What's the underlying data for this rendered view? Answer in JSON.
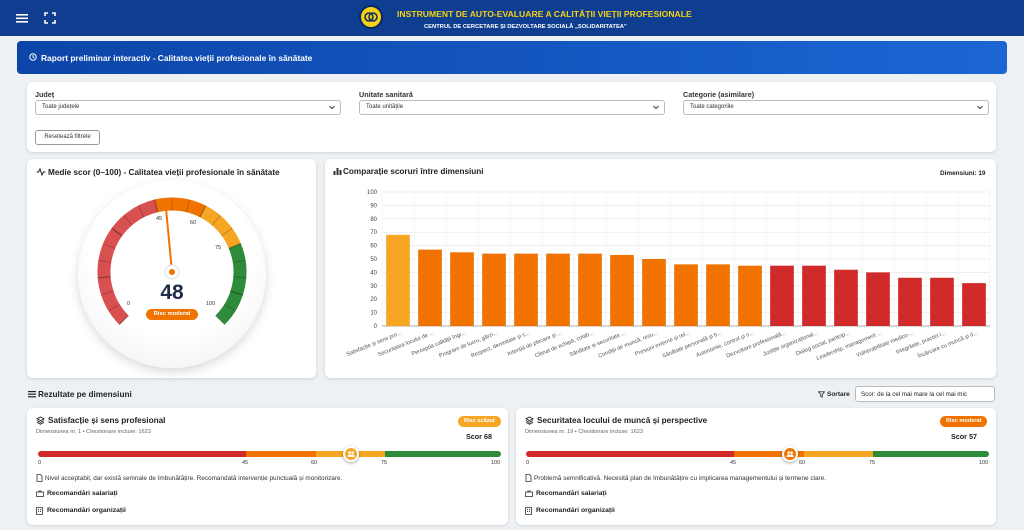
{
  "header": {
    "title": "INSTRUMENT DE AUTO-EVALUARE A CALITĂȚII VIEȚII PROFESIONALE",
    "subtitle": "CENTRUL DE CERCETARE ȘI DEZVOLTARE SOCIALĂ „SOLIDARITATEA\""
  },
  "hero": {
    "title": "Raport preliminar interactiv - Calitatea vieții profesionale în sănătate"
  },
  "filters": {
    "judet": {
      "label": "Județ",
      "value": "Toate județele"
    },
    "unitate": {
      "label": "Unitate sanitară",
      "value": "Toate unitățile"
    },
    "categorie": {
      "label": "Categorie (asimilare)",
      "value": "Toate categoriile"
    },
    "reset": "Resetează filtrele"
  },
  "gauge": {
    "title": "Medie scor (0–100) - Calitatea vieții profesionale în sănătate",
    "value": 48,
    "value_text": "48",
    "badge": "Risc moderat",
    "ticks": [
      "0",
      "45",
      "60",
      "75",
      "100"
    ]
  },
  "comparison": {
    "title": "Comparație scoruri între dimensiuni",
    "count_label": "Dimensiuni: 19"
  },
  "chart_data": {
    "type": "bar",
    "title": "Comparație scoruri între dimensiuni",
    "categories": [
      "Satisfacție și sens pro...",
      "Securitatea locului de ...",
      "Percepția calității îngr...",
      "Program de lucru, gărzi...",
      "Respect, demnitate și c...",
      "Intenția de plecare și ...",
      "Climat de echipă, colab...",
      "Sănătate și securitate ...",
      "Condiții de muncă, resu...",
      "Presiuni externe și rel...",
      "Sănătate personală și b...",
      "Autonomie, control și o...",
      "Dezvoltare profesională...",
      "Justiție organizațional...",
      "Dialog social, particip...",
      "Leadership, management ...",
      "Vulnerabilitate medico-...",
      "Integritate, practici i...",
      "Încărcare cu muncă și d..."
    ],
    "values": [
      68,
      57,
      55,
      54,
      54,
      54,
      54,
      53,
      50,
      46,
      46,
      45,
      45,
      45,
      42,
      40,
      36,
      36,
      32
    ],
    "colors": [
      "#f6a623",
      "#f07300",
      "#f07300",
      "#f07300",
      "#f07300",
      "#f07300",
      "#f07300",
      "#f07300",
      "#f07300",
      "#f07300",
      "#f07300",
      "#f07300",
      "#d02a2a",
      "#d02a2a",
      "#d02a2a",
      "#d02a2a",
      "#d02a2a",
      "#d02a2a",
      "#d02a2a"
    ],
    "ylim": [
      0,
      100
    ],
    "yticks": [
      "0",
      "10",
      "20",
      "30",
      "40",
      "50",
      "60",
      "70",
      "80",
      "90",
      "100"
    ],
    "grid": true
  },
  "results": {
    "title": "Rezultate pe dimensiuni",
    "sort_label": "Sortare",
    "sort_value": "Scor: de la cel mai mare la cel mai mic",
    "items": [
      {
        "name": "Satisfacție și sens profesional",
        "meta": "Dimensiunea nr. 1 • Chestionare incluse: 1623",
        "badge": "Risc scăzut",
        "badge_color": "#f6a623",
        "score_label": "Scor 68",
        "score": 68,
        "note": "Nivel acceptabil, dar există semnale de îmbunătățire. Recomandată intervenție punctuală și monitorizare.",
        "rec_employees": "Recomandări salariați",
        "rec_org": "Recomandări organizații"
      },
      {
        "name": "Securitatea locului de muncă și perspective",
        "meta": "Dimensiunea nr. 19 • Chestionare incluse: 1623",
        "badge": "Risc moderat",
        "badge_color": "#f07300",
        "score_label": "Scor 57",
        "score": 57,
        "note": "Problemă semnificativă. Necesită plan de îmbunătățire cu implicarea managementului și termene clare.",
        "rec_employees": "Recomandări salariați",
        "rec_org": "Recomandări organizații"
      }
    ],
    "scale_ticks": [
      "0",
      "45",
      "60",
      "75",
      "100"
    ]
  },
  "colors": {
    "red": "#d02a2a",
    "orange": "#f07300",
    "amber": "#f6a623",
    "green": "#2e8b3a",
    "brand": "#0f3d8f"
  }
}
